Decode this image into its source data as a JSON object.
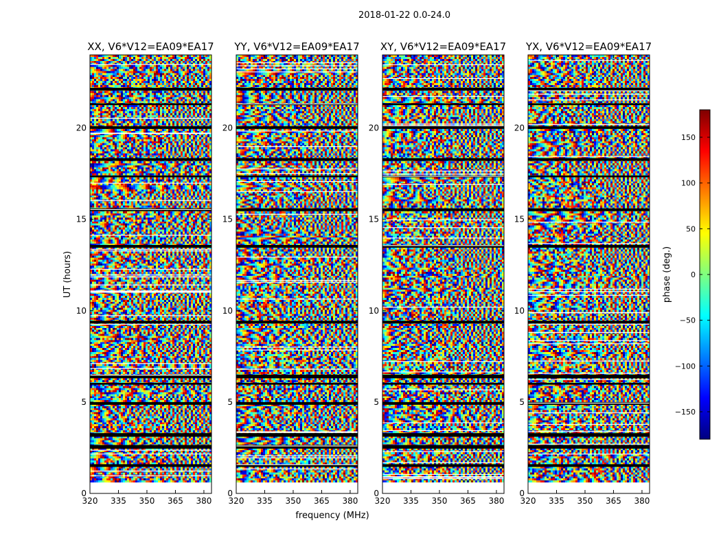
{
  "figure": {
    "suptitle": "2018-01-22 0.0-24.0"
  },
  "chart_data": {
    "type": "heatmap",
    "ylabel": "UT (hours)",
    "xlabel": "frequency (MHz)",
    "xlim": [
      320,
      384
    ],
    "ylim": [
      0,
      24
    ],
    "xticks": [
      320,
      335,
      350,
      365,
      380
    ],
    "yticks": [
      0,
      5,
      10,
      15,
      20
    ],
    "panels": [
      {
        "title": "XX, V6*V12=EA09*EA17"
      },
      {
        "title": "YY, V6*V12=EA09*EA17"
      },
      {
        "title": "XY, V6*V12=EA09*EA17"
      },
      {
        "title": "YX, V6*V12=EA09*EA17"
      }
    ],
    "colorbar": {
      "label": "phase (deg.)",
      "range": [
        -180,
        180
      ],
      "ticks": [
        150,
        100,
        50,
        0,
        -50,
        -100,
        -150
      ],
      "tick_labels": [
        "150",
        "100",
        "50",
        "0",
        "−50",
        "−100",
        "−150"
      ],
      "colormap": [
        "#00007f",
        "#0000ff",
        "#007fff",
        "#00ffff",
        "#7fff7f",
        "#ffff00",
        "#ff7f00",
        "#ff0000",
        "#7f0000"
      ]
    },
    "data_start_hours": 0.6,
    "data_end_hours": 24,
    "gap_bands_hours": [
      [
        1.45,
        1.6
      ],
      [
        2.45,
        2.65
      ],
      [
        3.1,
        3.3
      ],
      [
        4.85,
        5.0
      ],
      [
        5.95,
        6.05
      ],
      [
        6.3,
        6.5
      ],
      [
        9.3,
        9.45
      ],
      [
        13.45,
        13.6
      ],
      [
        15.45,
        15.6
      ],
      [
        17.3,
        17.4
      ],
      [
        18.2,
        18.35
      ],
      [
        19.95,
        20.1
      ],
      [
        21.25,
        21.35
      ],
      [
        22.05,
        22.2
      ]
    ]
  }
}
